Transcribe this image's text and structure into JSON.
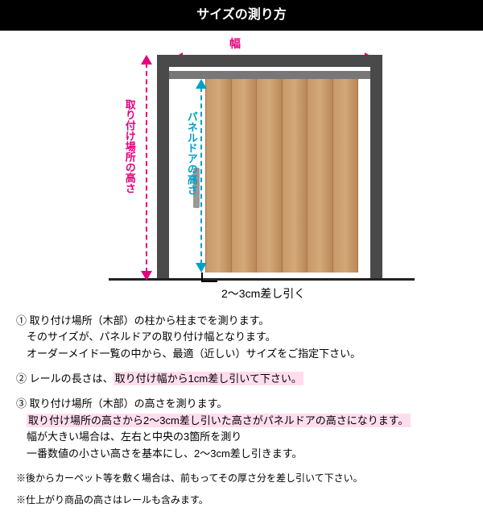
{
  "header": {
    "title": "サイズの測り方"
  },
  "diagram": {
    "width_label": "幅",
    "panel_height_label": "パネルドアの高さ",
    "install_height_label": "取り付け場所の高さ",
    "gap_label": "2〜3cm差し引く",
    "colors": {
      "frame": "#4a4a4a",
      "slat_light": "#d4a878",
      "slat_dark": "#b88858",
      "pink": "#e4007f",
      "cyan": "#00a0c8",
      "highlight_pink": "#ffddee"
    },
    "slat_count": 6
  },
  "instructions": {
    "item1": {
      "num": "①",
      "line1": "取り付け場所（木部）の柱から柱までを測ります。",
      "line2": "そのサイズが、パネルドアの取り付け幅となります。",
      "line3": "オーダーメイド一覧の中から、最適（近しい）サイズをご指定下さい。"
    },
    "item2": {
      "num": "②",
      "prefix": "レールの長さは、",
      "highlight": "取り付け幅から1cm差し引いて下さい。"
    },
    "item3": {
      "num": "③",
      "line1": "取り付け場所（木部）の高さを測ります。",
      "highlight": "取り付け場所の高さから2〜3cm差し引いた高さがパネルドアの高さになります。",
      "line3": "幅が大きい場合は、左右と中央の3箇所を測り",
      "line4": "一番数値の小さい高さを基本にし、2〜3cm差し引きます。"
    },
    "footnote1": "※後からカーペット等を敷く場合は、前もってその厚さ分を差し引いて下さい。",
    "footnote2": "※仕上がり商品の高さはレールも含みます。"
  }
}
